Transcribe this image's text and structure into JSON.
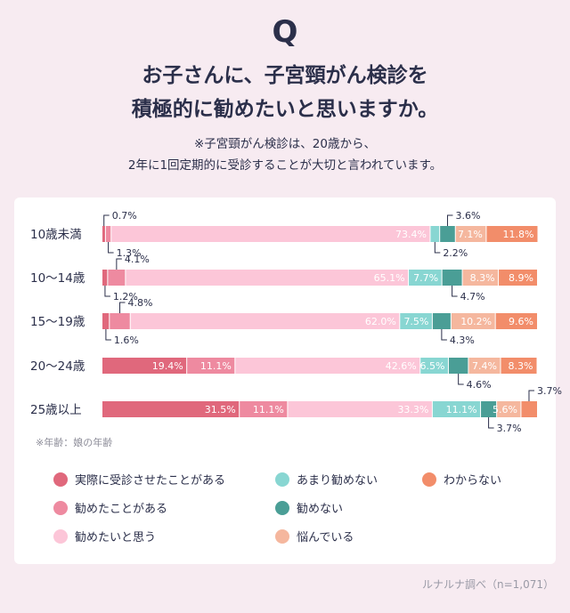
{
  "header": {
    "q_mark": "Q",
    "title_line1": "お子さんに、子宮頸がん検診を",
    "title_line2": "積極的に勧めたいと思いますか。",
    "note_line1": "※子宮頸がん検診は、20歳から、",
    "note_line2": "2年に1回定期的に受診することが大切と言われています。"
  },
  "source": "ルナルナ調べ（n=1,071）",
  "colors": {
    "実際に受診させたことがある": "#e0687c",
    "勧めたことがある": "#ee8aa0",
    "勧めたいと思う": "#fcc6d8",
    "あまり勧めない": "#88d6d2",
    "勧めない": "#4a9e96",
    "悩んでいる": "#f5b79e",
    "わからない": "#f28d6a"
  },
  "chart_data": {
    "type": "bar",
    "orientation": "horizontal",
    "stacked": "100%",
    "unit": "%",
    "title": "お子さんに、子宮頸がん検診を積極的に勧めたいと思いますか。",
    "categories": [
      "10歳未満",
      "10〜14歳",
      "15〜19歳",
      "20〜24歳",
      "25歳以上"
    ],
    "series": [
      {
        "name": "実際に受診させたことがある",
        "values": [
          0.7,
          1.2,
          1.6,
          19.4,
          31.5
        ]
      },
      {
        "name": "勧めたことがある",
        "values": [
          1.3,
          4.1,
          4.8,
          11.1,
          11.1
        ]
      },
      {
        "name": "勧めたいと思う",
        "values": [
          73.4,
          65.1,
          62.0,
          42.6,
          33.3
        ]
      },
      {
        "name": "あまり勧めない",
        "values": [
          2.2,
          7.7,
          7.5,
          6.5,
          11.1
        ]
      },
      {
        "name": "勧めない",
        "values": [
          3.6,
          4.7,
          4.3,
          4.6,
          3.7
        ]
      },
      {
        "name": "悩んでいる",
        "values": [
          7.1,
          8.3,
          10.2,
          7.4,
          5.6
        ]
      },
      {
        "name": "わからない",
        "values": [
          11.8,
          8.9,
          9.6,
          8.3,
          3.7
        ]
      }
    ],
    "value_labels": [
      [
        "0.7%",
        "1.3%",
        "73.4%",
        "2.2%",
        "3.6%",
        "7.1%",
        "11.8%"
      ],
      [
        "1.2%",
        "4.1%",
        "65.1%",
        "7.7%",
        "4.7%",
        "8.3%",
        "8.9%"
      ],
      [
        "1.6%",
        "4.8%",
        "62.0%",
        "7.5%",
        "4.3%",
        "10.2%",
        "9.6%"
      ],
      [
        "19.4%",
        "11.1%",
        "42.6%",
        "6.5%",
        "4.6%",
        "7.4%",
        "8.3%"
      ],
      [
        "31.5%",
        "11.1%",
        "33.3%",
        "11.1%",
        "3.7%",
        "5.6%",
        "3.7%"
      ]
    ],
    "axis_note": "※年齢：娘の年齢",
    "legend": [
      "実際に受診させたことがある",
      "あまり勧めない",
      "わからない",
      "勧めたことがある",
      "勧めない",
      "勧めたいと思う",
      "悩んでいる"
    ],
    "legend_position": "bottom"
  }
}
